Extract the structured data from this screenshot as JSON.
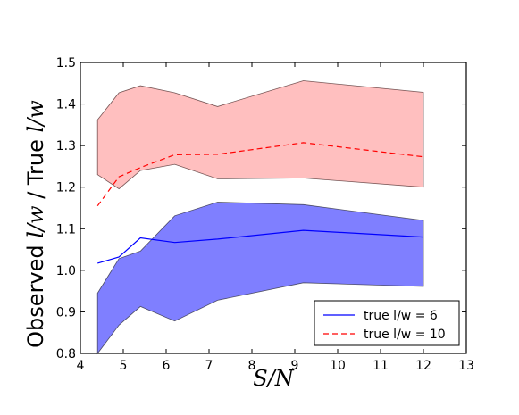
{
  "chart_data": {
    "type": "area",
    "title": "",
    "xlabel": "S/N",
    "ylabel": {
      "prefix": "Observed ",
      "var1": "l/w",
      "middle": " / True ",
      "var2": "l/w"
    },
    "xlim": [
      4,
      13
    ],
    "ylim": [
      0.8,
      1.5
    ],
    "xticks": [
      "4",
      "5",
      "6",
      "7",
      "8",
      "9",
      "10",
      "11",
      "12",
      "13"
    ],
    "yticks": [
      "0.8",
      "0.9",
      "1.0",
      "1.1",
      "1.2",
      "1.3",
      "1.4",
      "1.5"
    ],
    "grid": false,
    "legend_position": "lower-right",
    "series": [
      {
        "name": "true l/w = 6",
        "color": "#0000ff",
        "fill_color": "#7f7fff",
        "line_style": "solid",
        "x": [
          4.4,
          4.9,
          5.4,
          6.2,
          7.2,
          9.2,
          12.0
        ],
        "y": [
          1.017,
          1.032,
          1.078,
          1.067,
          1.075,
          1.096,
          1.08
        ],
        "lower": [
          0.8,
          0.868,
          0.913,
          0.878,
          0.928,
          0.97,
          0.961
        ],
        "upper": [
          0.945,
          1.028,
          1.046,
          1.131,
          1.164,
          1.158,
          1.12
        ]
      },
      {
        "name": "true l/w = 10",
        "color": "#ff0000",
        "fill_color": "#ff7f7f",
        "line_style": "dashed",
        "x": [
          4.4,
          4.9,
          5.4,
          6.2,
          7.2,
          9.2,
          12.0
        ],
        "y": [
          1.155,
          1.225,
          1.247,
          1.278,
          1.279,
          1.307,
          1.273
        ],
        "lower": [
          1.23,
          1.196,
          1.24,
          1.255,
          1.22,
          1.222,
          1.2
        ],
        "upper": [
          1.362,
          1.427,
          1.444,
          1.427,
          1.394,
          1.456,
          1.428
        ]
      }
    ]
  }
}
